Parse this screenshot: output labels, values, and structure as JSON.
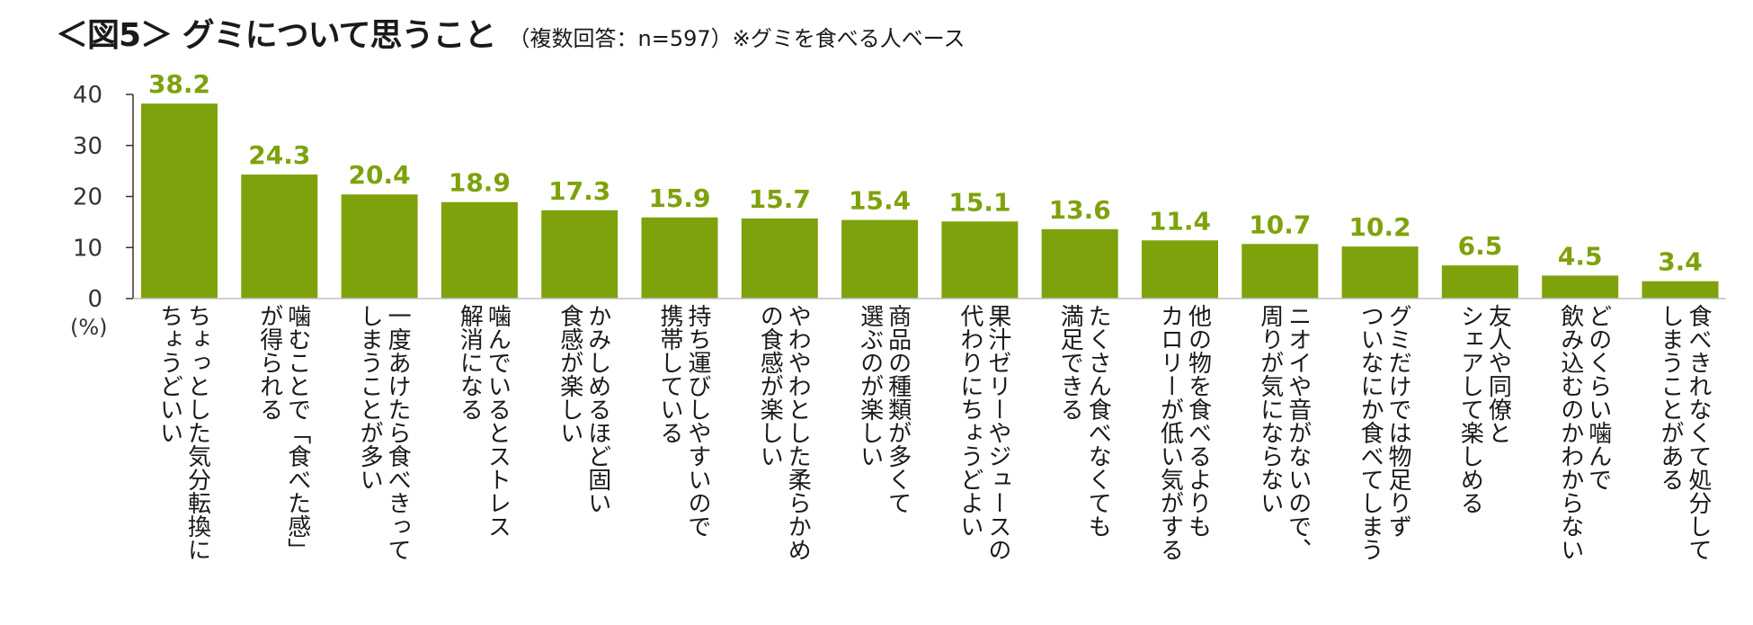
{
  "title": "＜図5＞ グミについて思うこと",
  "subtitle": "（複数回答：n=597）※グミを食べる人ベース",
  "colors": {
    "bar": "#7ea20c",
    "label": "#7ea20c",
    "axis": "#333333",
    "text": "#1a1a1a"
  },
  "chart_data": {
    "type": "bar",
    "title": "＜図5＞ グミについて思うこと",
    "subtitle": "（複数回答：n=597）※グミを食べる人ベース",
    "ylabel": "(%)",
    "xlabel": "",
    "ylim": [
      0,
      40
    ],
    "yticks": [
      "0",
      "10",
      "20",
      "30",
      "40"
    ],
    "grid": false,
    "categories": [
      "ちょっとした気分転換に\nちょうどいい",
      "噛むことで「食べた感」\nが得られる",
      "一度あけたら食べきって\nしまうことが多い",
      "噛んでいるとストレス\n解消になる",
      "かみしめるほど固い\n食感が楽しい",
      "持ち運びしやすいので\n携帯している",
      "やわやわとした柔らかめ\nの食感が楽しい",
      "商品の種類が多くて\n選ぶのが楽しい",
      "果汁ゼリーやジュースの\n代わりにちょうどよい",
      "たくさん食べなくても\n満足できる",
      "他の物を食べるよりも\nカロリーが低い気がする",
      "ニオイや音がないので、\n周りが気にならない",
      "グミだけでは物足りず\nついなにか食べてしまう",
      "友人や同僚と\nシェアして楽しめる",
      "どのくらい噛んで\n飲み込むのかわからない",
      "食べきれなくて処分して\nしまうことがある"
    ],
    "values": [
      38.2,
      24.3,
      20.4,
      18.9,
      17.3,
      15.9,
      15.7,
      15.4,
      15.1,
      13.6,
      11.4,
      10.7,
      10.2,
      6.5,
      4.5,
      3.4
    ],
    "value_labels": [
      "38.2",
      "24.3",
      "20.4",
      "18.9",
      "17.3",
      "15.9",
      "15.7",
      "15.4",
      "15.1",
      "13.6",
      "11.4",
      "10.7",
      "10.2",
      "6.5",
      "4.5",
      "3.4"
    ]
  }
}
